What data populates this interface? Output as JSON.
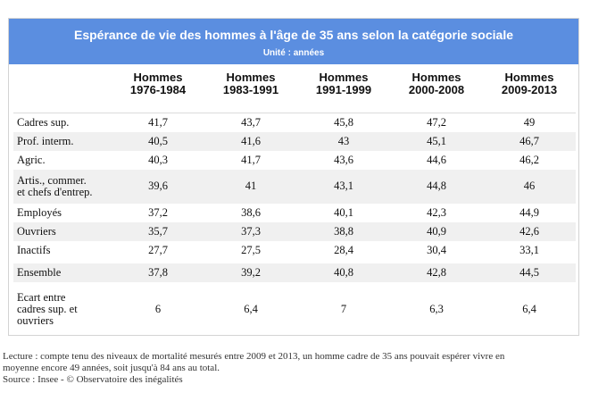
{
  "header": {
    "title": "Espérance de vie des hommes à l'âge de 35 ans selon la catégorie sociale",
    "unit": "Unité : années"
  },
  "columns": [
    {
      "line1": "Hommes",
      "line2": "1976-1984"
    },
    {
      "line1": "Hommes",
      "line2": "1983-1991"
    },
    {
      "line1": "Hommes",
      "line2": "1991-1999"
    },
    {
      "line1": "Hommes",
      "line2": "2000-2008"
    },
    {
      "line1": "Hommes",
      "line2": "2009-2013"
    }
  ],
  "rows": [
    {
      "label": "Cadres sup.",
      "values": [
        "41,7",
        "43,7",
        "45,8",
        "47,2",
        "49"
      ]
    },
    {
      "label": "Prof. interm.",
      "values": [
        "40,5",
        "41,6",
        "43",
        "45,1",
        "46,7"
      ]
    },
    {
      "label": "Agric.",
      "values": [
        "40,3",
        "41,7",
        "43,6",
        "44,6",
        "46,2"
      ]
    },
    {
      "label_line1": "Artis., commer.",
      "label_line2": "et chefs d'entrep.",
      "values": [
        "39,6",
        "41",
        "43,1",
        "44,8",
        "46"
      ]
    },
    {
      "label": "Employés",
      "values": [
        "37,2",
        "38,6",
        "40,1",
        "42,3",
        "44,9"
      ]
    },
    {
      "label": "Ouvriers",
      "values": [
        "35,7",
        "37,3",
        "38,8",
        "40,9",
        "42,6"
      ]
    },
    {
      "label": "Inactifs",
      "values": [
        "27,7",
        "27,5",
        "28,4",
        "30,4",
        "33,1"
      ]
    },
    {
      "label": "Ensemble",
      "values": [
        "37,8",
        "39,2",
        "40,8",
        "42,8",
        "44,5"
      ]
    },
    {
      "label_line1": "Ecart entre",
      "label_line2": "cadres sup. et",
      "label_line3": "ouvriers",
      "values": [
        "6",
        "6,4",
        "7",
        "6,3",
        "6,4"
      ]
    }
  ],
  "notes": {
    "line1": "Lecture : compte tenu des niveaux de mortalité mesurés entre 2009 et 2013, un homme cadre de 35 ans pouvait espérer vivre en",
    "line2": "moyenne encore 49 années, soit jusqu'à 84 ans au total.",
    "line3": "Source : Insee - © Observatoire des inégalités"
  }
}
